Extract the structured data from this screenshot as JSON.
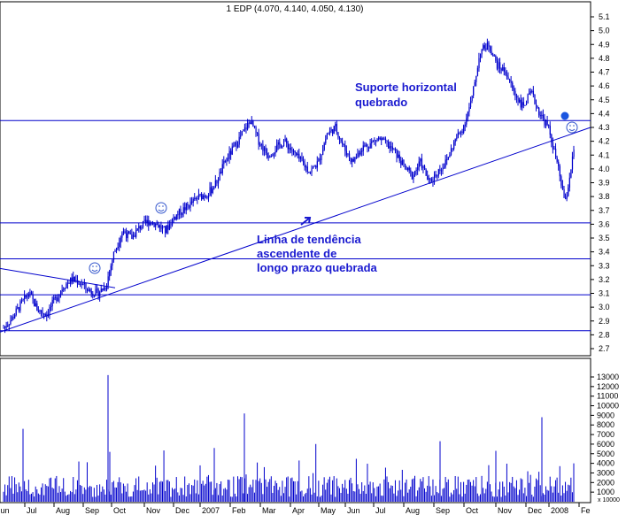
{
  "chart_data": {
    "type": "candlestick",
    "title": "1 EDP (4.070, 4.140, 4.050, 4.130)",
    "price_axis": {
      "min": 2.7,
      "max": 5.1,
      "ticks": [
        "5.1",
        "5.0",
        "4.9",
        "4.8",
        "4.7",
        "4.6",
        "4.5",
        "4.4",
        "4.3",
        "4.2",
        "4.1",
        "4.0",
        "3.9",
        "3.8",
        "3.7",
        "3.6",
        "3.5",
        "3.4",
        "3.3",
        "3.2",
        "3.1",
        "3.0",
        "2.9",
        "2.8",
        "2.7"
      ]
    },
    "volume_axis": {
      "min": 0,
      "max": 13000,
      "ticks": [
        "13000",
        "12000",
        "11000",
        "10000",
        "9000",
        "8000",
        "7000",
        "6000",
        "5000",
        "4000",
        "3000",
        "2000",
        "1000"
      ],
      "unit_label": "x 10000"
    },
    "x_axis": {
      "labels": [
        "Jun",
        "Jul",
        "Aug",
        "Sep",
        "Oct",
        "Nov",
        "Dec",
        "2007",
        "Feb",
        "Mar",
        "Apr",
        "May",
        "Jun",
        "Jul",
        "Aug",
        "Sep",
        "Oct",
        "Nov",
        "Dec",
        "2008",
        "Fe"
      ]
    },
    "horizontal_levels": [
      4.35,
      3.61,
      3.35,
      3.09,
      2.83
    ],
    "trendlines": [
      {
        "from": {
          "date": "2006-06",
          "price": 2.82
        },
        "to": {
          "date": "2008-02",
          "price": 4.3
        }
      },
      {
        "from": {
          "date": "2006-06",
          "price": 3.28
        },
        "to": {
          "date": "2006-09",
          "price": 3.14
        }
      }
    ],
    "annotations": [
      {
        "text_lines": [
          "Suporte horizontal",
          "quebrado"
        ]
      },
      {
        "text_lines": [
          "Linha de tendência",
          "ascendente de",
          "longo prazo quebrada"
        ]
      }
    ],
    "price_series_approx": [
      2.85,
      2.92,
      3.02,
      3.1,
      2.98,
      2.95,
      3.05,
      3.15,
      3.2,
      3.18,
      3.12,
      3.1,
      3.15,
      3.4,
      3.55,
      3.5,
      3.58,
      3.62,
      3.6,
      3.55,
      3.65,
      3.7,
      3.75,
      3.8,
      3.82,
      3.9,
      4.05,
      4.15,
      4.25,
      4.35,
      4.2,
      4.1,
      4.15,
      4.2,
      4.12,
      4.05,
      3.98,
      4.05,
      4.25,
      4.3,
      4.15,
      4.05,
      4.15,
      4.18,
      4.22,
      4.18,
      4.12,
      4.02,
      3.95,
      4.05,
      3.9,
      3.98,
      4.05,
      4.2,
      4.3,
      4.5,
      4.85,
      4.9,
      4.75,
      4.7,
      4.55,
      4.45,
      4.55,
      4.4,
      4.3,
      4.05,
      3.75,
      4.13
    ],
    "colors": {
      "candles": "#0000cc",
      "lines": "#0000cc",
      "annotation": "#1a1ad0",
      "markers": "#1a55e0"
    }
  }
}
